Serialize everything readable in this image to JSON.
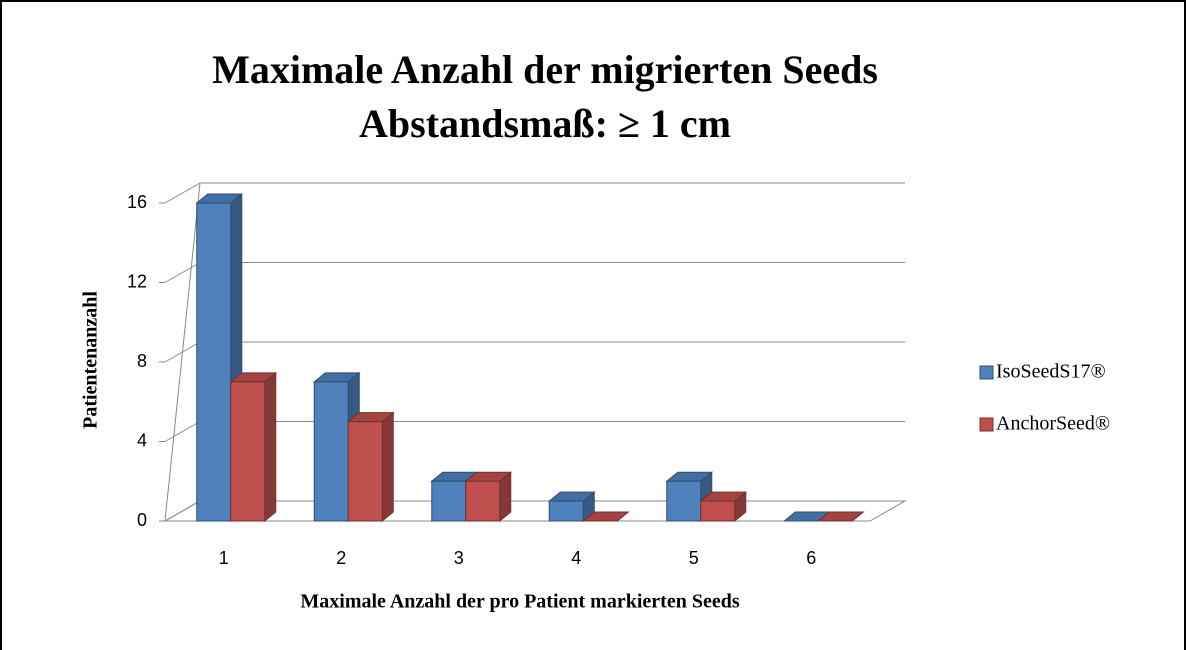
{
  "chart_data": {
    "type": "bar3d",
    "title": "Maximale Anzahl der migrierten Seeds",
    "subtitle": "Abstandsmaß: ≥ 1 cm",
    "x_label": "Maximale Anzahl der pro Patient markierten Seeds",
    "y_label": "Patientenanzahl",
    "categories": [
      "1",
      "2",
      "3",
      "4",
      "5",
      "6"
    ],
    "series": [
      {
        "name": "IsoSeedS17®",
        "color": "#4f81bd",
        "values": [
          16,
          7,
          2,
          1,
          2,
          0
        ]
      },
      {
        "name": "AnchorSeed®",
        "color": "#c0504d",
        "values": [
          7,
          5,
          2,
          0,
          1,
          0
        ]
      }
    ],
    "ylim": [
      0,
      16
    ],
    "yticks": [
      0,
      4,
      8,
      12,
      16
    ],
    "grid": true,
    "legend": "right"
  }
}
